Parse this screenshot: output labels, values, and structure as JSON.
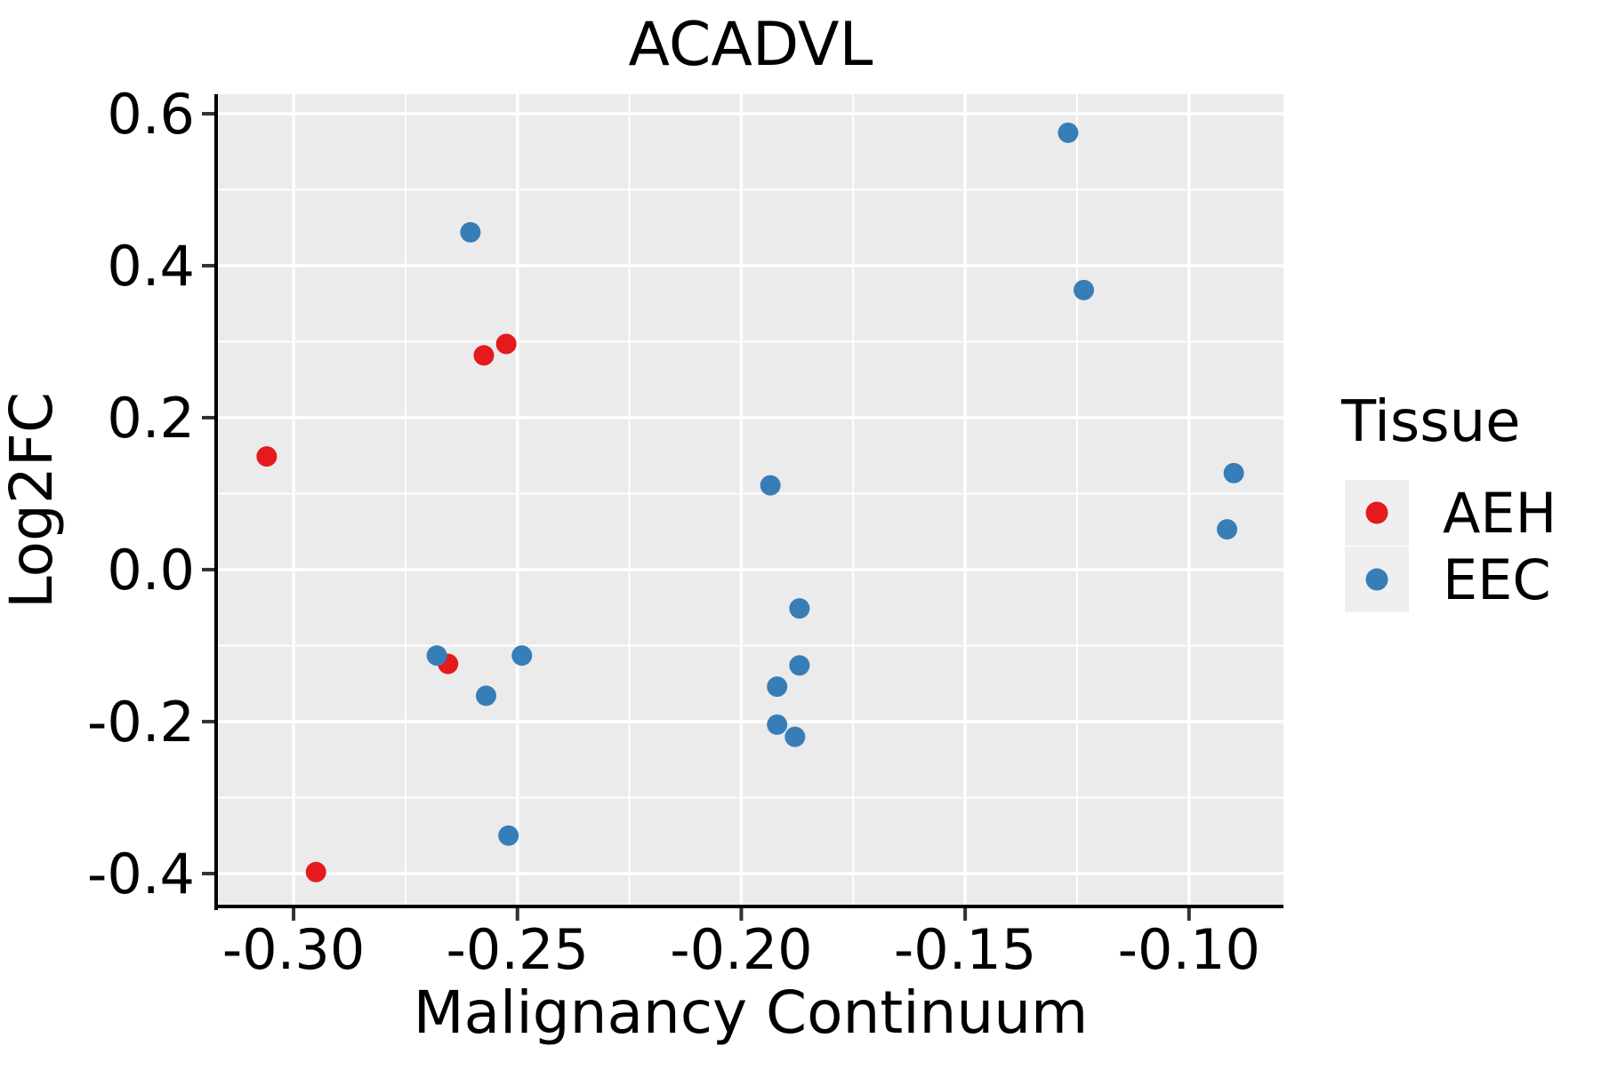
{
  "chart_data": {
    "type": "scatter",
    "title": "ACADVL",
    "xlabel": "Malignancy Continuum",
    "ylabel": "Log2FC",
    "x_domain": [
      -0.3169,
      -0.0789
    ],
    "y_domain": [
      -0.4433,
      0.6257
    ],
    "x_ticks": [
      {
        "value": -0.3,
        "label": "-0.30"
      },
      {
        "value": -0.25,
        "label": "-0.25"
      },
      {
        "value": -0.2,
        "label": "-0.20"
      },
      {
        "value": -0.15,
        "label": "-0.15"
      },
      {
        "value": -0.1,
        "label": "-0.10"
      }
    ],
    "y_ticks": [
      {
        "value": 0.6,
        "label": "0.6"
      },
      {
        "value": 0.4,
        "label": "0.4"
      },
      {
        "value": 0.2,
        "label": "0.2"
      },
      {
        "value": 0.0,
        "label": "0.0"
      },
      {
        "value": -0.2,
        "label": "-0.2"
      },
      {
        "value": -0.4,
        "label": "-0.4"
      }
    ],
    "x_minor_gridlines": [
      -0.275,
      -0.225,
      -0.175,
      -0.125
    ],
    "y_minor_gridlines": [
      0.5,
      0.3,
      0.1,
      -0.1,
      -0.3
    ],
    "grid": "on",
    "legend": {
      "title": "Tissue",
      "position": "right"
    },
    "series": [
      {
        "name": "AEH",
        "color": "#E41A1C",
        "points": [
          [
            -0.306,
            0.149
          ],
          [
            -0.2575,
            0.282
          ],
          [
            -0.2525,
            0.297
          ],
          [
            -0.2655,
            -0.124
          ],
          [
            -0.295,
            -0.398
          ]
        ]
      },
      {
        "name": "EEC",
        "color": "#377EB8",
        "points": [
          [
            -0.2605,
            0.444
          ],
          [
            -0.127,
            0.575
          ],
          [
            -0.1235,
            0.368
          ],
          [
            -0.1935,
            0.111
          ],
          [
            -0.09,
            0.127
          ],
          [
            -0.0915,
            0.053
          ],
          [
            -0.187,
            -0.051
          ],
          [
            -0.268,
            -0.113
          ],
          [
            -0.249,
            -0.113
          ],
          [
            -0.257,
            -0.166
          ],
          [
            -0.187,
            -0.126
          ],
          [
            -0.192,
            -0.154
          ],
          [
            -0.192,
            -0.204
          ],
          [
            -0.188,
            -0.22
          ],
          [
            -0.252,
            -0.35
          ]
        ]
      }
    ],
    "style": {
      "panel_background": "#EBEBEB",
      "gridline_color": "#FFFFFF",
      "axis_line_color": "#000000",
      "tick_color": "#333333",
      "legend_key_background": "#EFEFEF",
      "point_radius_px": 11.5
    }
  }
}
